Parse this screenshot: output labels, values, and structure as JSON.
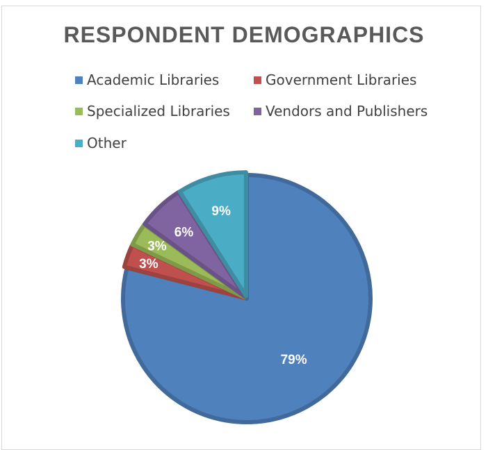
{
  "chart_data": {
    "type": "pie",
    "title": "RESPONDENT DEMOGRAPHICS",
    "legend_position": "top",
    "categories": [
      "Academic Libraries",
      "Government Libraries",
      "Specialized Libraries",
      "Vendors and Publishers",
      "Other"
    ],
    "values": [
      79,
      3,
      3,
      6,
      9
    ],
    "labels": [
      "79%",
      "3%",
      "3%",
      "6%",
      "9%"
    ],
    "colors": [
      "#4f81bd",
      "#c0504d",
      "#9bbb59",
      "#8064a2",
      "#4bacc6"
    ],
    "explode_last_four": true
  }
}
